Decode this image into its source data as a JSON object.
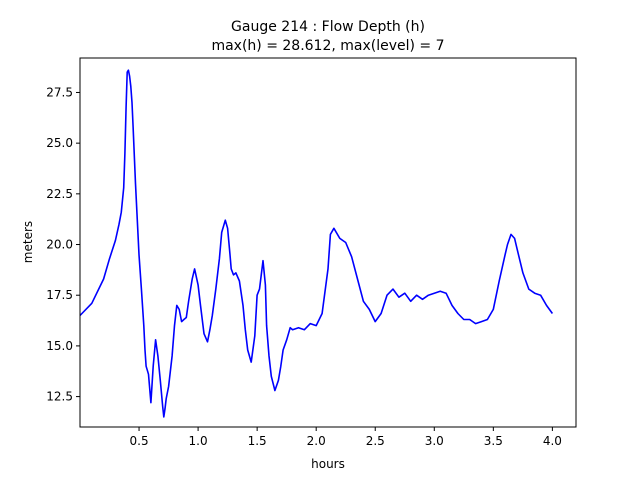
{
  "chart_data": {
    "type": "line",
    "title": "Gauge 214 : Flow Depth (h)",
    "subtitle": "max(h) =  28.612,    max(level) = 7",
    "xlabel": "hours",
    "ylabel": "meters",
    "xlim": [
      0.0,
      4.2
    ],
    "ylim": [
      11.0,
      29.2
    ],
    "xticks": [
      0.5,
      1.0,
      1.5,
      2.0,
      2.5,
      3.0,
      3.5,
      4.0
    ],
    "xtick_labels": [
      "0.5",
      "1.0",
      "1.5",
      "2.0",
      "2.5",
      "3.0",
      "3.5",
      "4.0"
    ],
    "yticks": [
      12.5,
      15.0,
      17.5,
      20.0,
      22.5,
      25.0,
      27.5
    ],
    "ytick_labels": [
      "12.5",
      "15.0",
      "17.5",
      "20.0",
      "22.5",
      "25.0",
      "27.5"
    ],
    "grid": false,
    "series": [
      {
        "color": "#0000ff",
        "x": [
          0.0,
          0.1,
          0.2,
          0.25,
          0.3,
          0.33,
          0.35,
          0.37,
          0.38,
          0.39,
          0.4,
          0.41,
          0.42,
          0.43,
          0.44,
          0.45,
          0.47,
          0.5,
          0.52,
          0.54,
          0.55,
          0.56,
          0.57,
          0.58,
          0.6,
          0.62,
          0.64,
          0.66,
          0.68,
          0.7,
          0.71,
          0.72,
          0.73,
          0.75,
          0.78,
          0.8,
          0.82,
          0.84,
          0.86,
          0.88,
          0.9,
          0.92,
          0.95,
          0.97,
          1.0,
          1.02,
          1.05,
          1.08,
          1.1,
          1.12,
          1.15,
          1.18,
          1.2,
          1.23,
          1.25,
          1.27,
          1.28,
          1.3,
          1.32,
          1.35,
          1.38,
          1.4,
          1.42,
          1.45,
          1.48,
          1.5,
          1.52,
          1.55,
          1.57,
          1.58,
          1.6,
          1.62,
          1.65,
          1.68,
          1.7,
          1.72,
          1.75,
          1.78,
          1.8,
          1.85,
          1.9,
          1.95,
          2.0,
          2.05,
          2.1,
          2.12,
          2.15,
          2.2,
          2.25,
          2.3,
          2.35,
          2.4,
          2.45,
          2.5,
          2.55,
          2.6,
          2.65,
          2.7,
          2.75,
          2.8,
          2.85,
          2.9,
          2.95,
          3.0,
          3.05,
          3.1,
          3.15,
          3.2,
          3.25,
          3.3,
          3.35,
          3.4,
          3.45,
          3.5,
          3.55,
          3.6,
          3.62,
          3.65,
          3.68,
          3.7,
          3.75,
          3.8,
          3.85,
          3.9,
          3.95,
          4.0
        ],
        "y": [
          16.5,
          17.1,
          18.3,
          19.3,
          20.2,
          21.0,
          21.6,
          22.8,
          24.5,
          26.8,
          28.5,
          28.6,
          28.3,
          27.8,
          27.0,
          25.8,
          23.0,
          19.5,
          17.8,
          16.0,
          14.8,
          14.0,
          13.8,
          13.6,
          12.2,
          14.0,
          15.3,
          14.5,
          13.3,
          12.0,
          11.5,
          11.9,
          12.4,
          13.0,
          14.5,
          16.0,
          17.0,
          16.8,
          16.2,
          16.3,
          16.4,
          17.2,
          18.3,
          18.8,
          18.0,
          17.0,
          15.6,
          15.2,
          15.8,
          16.5,
          17.8,
          19.3,
          20.6,
          21.2,
          20.8,
          19.5,
          18.8,
          18.5,
          18.6,
          18.2,
          17.0,
          15.8,
          14.8,
          14.2,
          15.5,
          17.5,
          17.8,
          19.2,
          18.0,
          16.0,
          14.5,
          13.5,
          12.8,
          13.3,
          14.0,
          14.8,
          15.3,
          15.9,
          15.8,
          15.9,
          15.8,
          16.1,
          16.0,
          16.6,
          18.8,
          20.5,
          20.8,
          20.3,
          20.1,
          19.4,
          18.3,
          17.2,
          16.8,
          16.2,
          16.6,
          17.5,
          17.8,
          17.4,
          17.6,
          17.2,
          17.5,
          17.3,
          17.5,
          17.6,
          17.7,
          17.6,
          17.0,
          16.6,
          16.3,
          16.3,
          16.1,
          16.2,
          16.3,
          16.8,
          18.2,
          19.5,
          20.0,
          20.5,
          20.3,
          19.8,
          18.6,
          17.8,
          17.6,
          17.5,
          17.0,
          16.6
        ]
      }
    ]
  }
}
